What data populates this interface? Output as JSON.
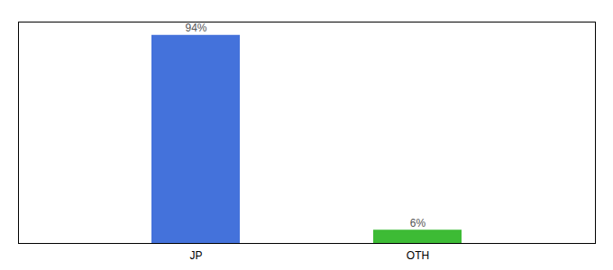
{
  "chart_data": {
    "type": "bar",
    "categories": [
      "JP",
      "OTH"
    ],
    "values": [
      94,
      6
    ],
    "value_labels": [
      "94%",
      "6%"
    ],
    "data_labels": true,
    "colors": [
      "#4472db",
      "#3dbb35"
    ],
    "ylim": [
      0,
      100
    ],
    "yticks": [],
    "tick_labels": "x",
    "grid": false
  }
}
